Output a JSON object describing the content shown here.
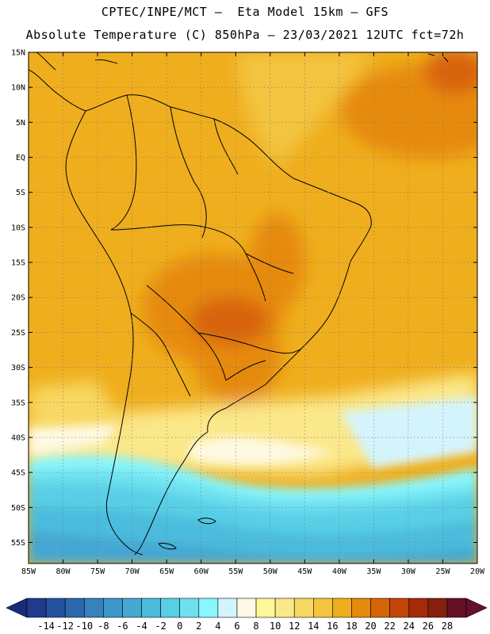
{
  "header": {
    "line1": "CPTEC/INPE/MCT –  Eta Model 15km – GFS",
    "line2": "Absolute Temperature (C) 850hPa – 23/03/2021 12UTC fct=72h"
  },
  "map": {
    "lat_labels": [
      "15N",
      "10N",
      "5N",
      "EQ",
      "5S",
      "10S",
      "15S",
      "20S",
      "25S",
      "30S",
      "35S",
      "40S",
      "45S",
      "50S",
      "55S"
    ],
    "lon_labels": [
      "85W",
      "80W",
      "75W",
      "70W",
      "65W",
      "60W",
      "55W",
      "50W",
      "45W",
      "40W",
      "35W",
      "30W",
      "25W",
      "20W"
    ],
    "lat_range": [
      15,
      -58
    ],
    "lon_range": [
      -85,
      -20
    ],
    "grid": "dotted"
  },
  "colorbar": {
    "levels": [
      "-14",
      "-12",
      "-10",
      "-8",
      "-6",
      "-4",
      "-2",
      "0",
      "2",
      "4",
      "6",
      "8",
      "10",
      "12",
      "14",
      "16",
      "18",
      "20",
      "22",
      "24",
      "26",
      "28"
    ],
    "colors": [
      "#1f3a8f",
      "#25529e",
      "#2b68ad",
      "#3582bd",
      "#3d96c9",
      "#44a8d3",
      "#4cbcdd",
      "#58cfe6",
      "#6ee1ef",
      "#8af6fd",
      "#d4f4fd",
      "#fef9e2",
      "#fef698",
      "#fbe88a",
      "#f8d862",
      "#f3c43f",
      "#efae1d",
      "#e68a0c",
      "#d86408",
      "#c24406",
      "#a52a08",
      "#84200c",
      "#661028"
    ],
    "under_color": "#1a2a7a",
    "over_color": "#66102a"
  }
}
